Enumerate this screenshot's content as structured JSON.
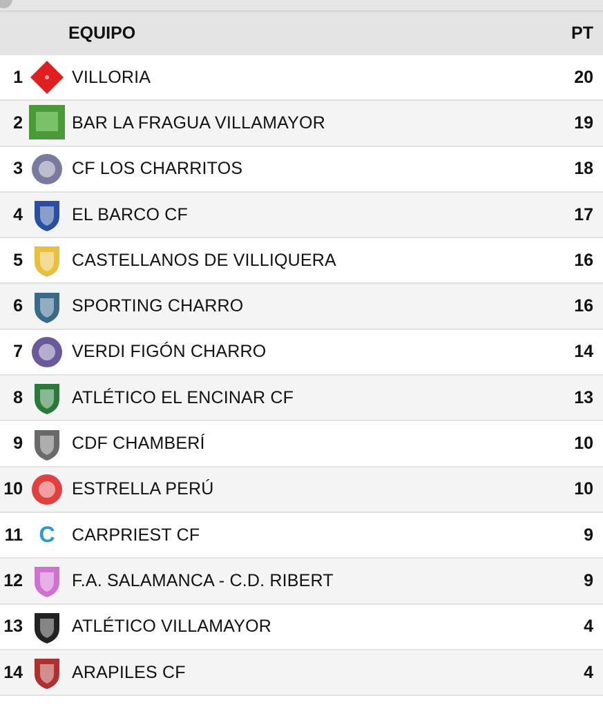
{
  "header": {
    "team_label": "EQUIPO",
    "points_label": "PT"
  },
  "rows": [
    {
      "rank": "1",
      "team": "VILLORIA",
      "points": "20",
      "logo_color": "#e02020",
      "logo_shape": "diamond"
    },
    {
      "rank": "2",
      "team": "BAR LA FRAGUA VILLAMAYOR",
      "points": "19",
      "logo_color": "#4a9a3a",
      "logo_shape": "square"
    },
    {
      "rank": "3",
      "team": "CF LOS CHARRITOS",
      "points": "18",
      "logo_color": "#7a7aa0",
      "logo_shape": "circle"
    },
    {
      "rank": "4",
      "team": "EL BARCO CF",
      "points": "17",
      "logo_color": "#2a4fa0",
      "logo_shape": "shield"
    },
    {
      "rank": "5",
      "team": "CASTELLANOS DE VILLIQUERA",
      "points": "16",
      "logo_color": "#e8c040",
      "logo_shape": "shield"
    },
    {
      "rank": "6",
      "team": "SPORTING CHARRO",
      "points": "16",
      "logo_color": "#3a6a8a",
      "logo_shape": "shield"
    },
    {
      "rank": "7",
      "team": "VERDI FIGÓN CHARRO",
      "points": "14",
      "logo_color": "#6a5a9a",
      "logo_shape": "circle"
    },
    {
      "rank": "8",
      "team": "ATLÉTICO EL ENCINAR CF",
      "points": "13",
      "logo_color": "#2a7a3a",
      "logo_shape": "shield"
    },
    {
      "rank": "9",
      "team": "CDF CHAMBERÍ",
      "points": "10",
      "logo_color": "#6a6a6a",
      "logo_shape": "shield"
    },
    {
      "rank": "10",
      "team": "ESTRELLA PERÚ",
      "points": "10",
      "logo_color": "#e04040",
      "logo_shape": "circle"
    },
    {
      "rank": "11",
      "team": "CARPRIEST CF",
      "points": "9",
      "logo_color": "#2a9ad0",
      "logo_shape": "letter"
    },
    {
      "rank": "12",
      "team": "F.A. SALAMANCA - C.D. RIBERT",
      "points": "9",
      "logo_color": "#d070d0",
      "logo_shape": "shield"
    },
    {
      "rank": "13",
      "team": "ATLÉTICO VILLAMAYOR",
      "points": "4",
      "logo_color": "#222222",
      "logo_shape": "shield"
    },
    {
      "rank": "14",
      "team": "ARAPILES CF",
      "points": "4",
      "logo_color": "#b03030",
      "logo_shape": "shield"
    }
  ]
}
